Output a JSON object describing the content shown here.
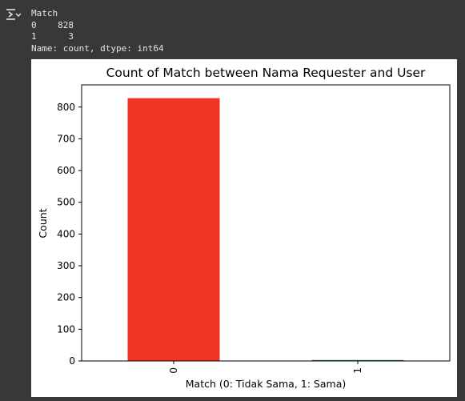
{
  "console": {
    "lines": [
      "Match",
      "0    828",
      "1      3",
      "Name: count, dtype: int64"
    ]
  },
  "output_icon": "output-expand-icon",
  "colors": {
    "background": "#383838",
    "bar_0": "#ee3524",
    "bar_1": "#2e7d32"
  },
  "chart_data": {
    "type": "bar",
    "title": "Count of Match between Nama Requester and User",
    "xlabel": "Match (0: Tidak Sama, 1: Sama)",
    "ylabel": "Count",
    "categories": [
      "0",
      "1"
    ],
    "values": [
      828,
      3
    ],
    "ylim": [
      0,
      870
    ],
    "yticks": [
      0,
      100,
      200,
      300,
      400,
      500,
      600,
      700,
      800
    ],
    "xtick_rotation": 90,
    "grid": false,
    "legend": "none"
  }
}
